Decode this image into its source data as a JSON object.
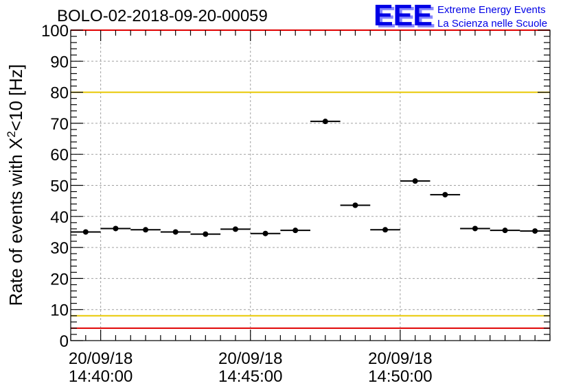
{
  "title": "BOLO-02-2018-09-20-00059",
  "logo": {
    "text": "EEE",
    "line1": "Extreme Energy Events",
    "line2": "La Scienza nelle Scuole",
    "color": "#0000e6"
  },
  "chart_data": {
    "type": "scatter",
    "title": "BOLO-02-2018-09-20-00059",
    "ylabel": {
      "prefix": "Rate of events with X",
      "sup": "2",
      "suffix": "<10 [Hz]"
    },
    "ylim": [
      0,
      100
    ],
    "yticks": [
      0,
      10,
      20,
      30,
      40,
      50,
      60,
      70,
      80,
      90,
      100
    ],
    "xticks": [
      {
        "date": "20/09/18",
        "time": "14:40:00",
        "bin": 1.0
      },
      {
        "date": "20/09/18",
        "time": "14:45:00",
        "bin": 6.0
      },
      {
        "date": "20/09/18",
        "time": "14:50:00",
        "bin": 11.0
      }
    ],
    "bin_width_minutes": 1,
    "values": [
      35.0,
      36.1,
      35.7,
      35.0,
      34.3,
      35.9,
      34.5,
      35.5,
      70.6,
      43.6,
      35.7,
      51.4,
      47.0,
      36.1,
      35.5,
      35.3
    ],
    "reference_lines": [
      {
        "y": 80,
        "color": "#e8c800"
      },
      {
        "y": 8,
        "color": "#e8c800"
      },
      {
        "y": 4,
        "color": "#e00000"
      }
    ],
    "grid": true,
    "colors": {
      "frame_top": "#e00000",
      "marker": "#000000",
      "grid": "#a0a0a0"
    }
  }
}
